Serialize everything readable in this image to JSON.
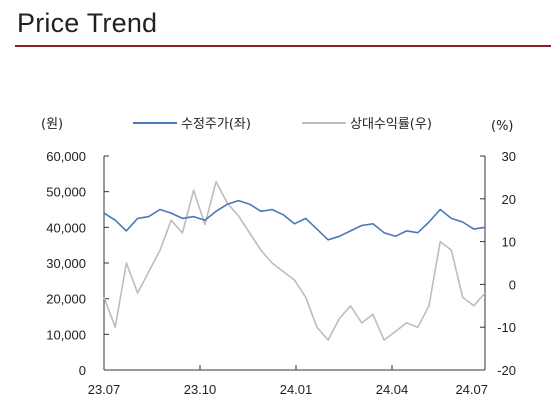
{
  "header": {
    "title": "Price Trend"
  },
  "chart_data": {
    "type": "line",
    "left_unit": "(원)",
    "right_unit": "(%)",
    "x_ticks": [
      "23.07",
      "23.10",
      "24.01",
      "24.04",
      "24.07"
    ],
    "y_left_ticks": [
      "60,000",
      "50,000",
      "40,000",
      "30,000",
      "20,000",
      "10,000",
      "0"
    ],
    "y_right_ticks": [
      "30",
      "20",
      "10",
      "0",
      "-10",
      "-20"
    ],
    "y_left_range": [
      0,
      60000
    ],
    "y_right_range": [
      -20,
      30
    ],
    "grid": false,
    "legend_position": "top-center",
    "colors": {
      "price": "#4a78b8",
      "relative": "#bdbdbd",
      "accent": "#8b1d2c"
    },
    "series": [
      {
        "name": "수정주가(좌)",
        "axis": "left",
        "x": [
          "23.07",
          "23.07",
          "23.08",
          "23.08",
          "23.08",
          "23.09",
          "23.09",
          "23.09",
          "23.10",
          "23.10",
          "23.10",
          "23.10",
          "23.11",
          "23.11",
          "23.11",
          "23.12",
          "23.12",
          "23.12",
          "24.01",
          "24.01",
          "24.01",
          "24.02",
          "24.02",
          "24.03",
          "24.03",
          "24.04",
          "24.04",
          "24.04",
          "24.05",
          "24.05",
          "24.06",
          "24.06",
          "24.06",
          "24.07",
          "24.07"
        ],
        "values": [
          44000,
          42000,
          39000,
          42500,
          43000,
          45000,
          44000,
          42500,
          43000,
          42000,
          44500,
          46500,
          47500,
          46500,
          44500,
          45000,
          43500,
          41000,
          42500,
          39500,
          36500,
          37500,
          39000,
          40500,
          41000,
          38500,
          37500,
          39000,
          38500,
          41500,
          45000,
          42500,
          41500,
          39500,
          40000
        ]
      },
      {
        "name": "상대수익률(우)",
        "axis": "right",
        "x": [
          "23.07",
          "23.07",
          "23.08",
          "23.08",
          "23.08",
          "23.09",
          "23.09",
          "23.09",
          "23.10",
          "23.10",
          "23.10",
          "23.10",
          "23.11",
          "23.11",
          "23.11",
          "23.12",
          "23.12",
          "23.12",
          "24.01",
          "24.01",
          "24.01",
          "24.02",
          "24.02",
          "24.03",
          "24.03",
          "24.04",
          "24.04",
          "24.04",
          "24.05",
          "24.05",
          "24.06",
          "24.06",
          "24.06",
          "24.07",
          "24.07"
        ],
        "values": [
          -3,
          -10,
          5,
          -2,
          3,
          8,
          15,
          12,
          22,
          14,
          24,
          19,
          16,
          12,
          8,
          5,
          3,
          1,
          -3,
          -10,
          -13,
          -8,
          -5,
          -9,
          -7,
          -13,
          -11,
          -9,
          -10,
          -5,
          10,
          8,
          -3,
          -5,
          -2
        ]
      }
    ]
  }
}
